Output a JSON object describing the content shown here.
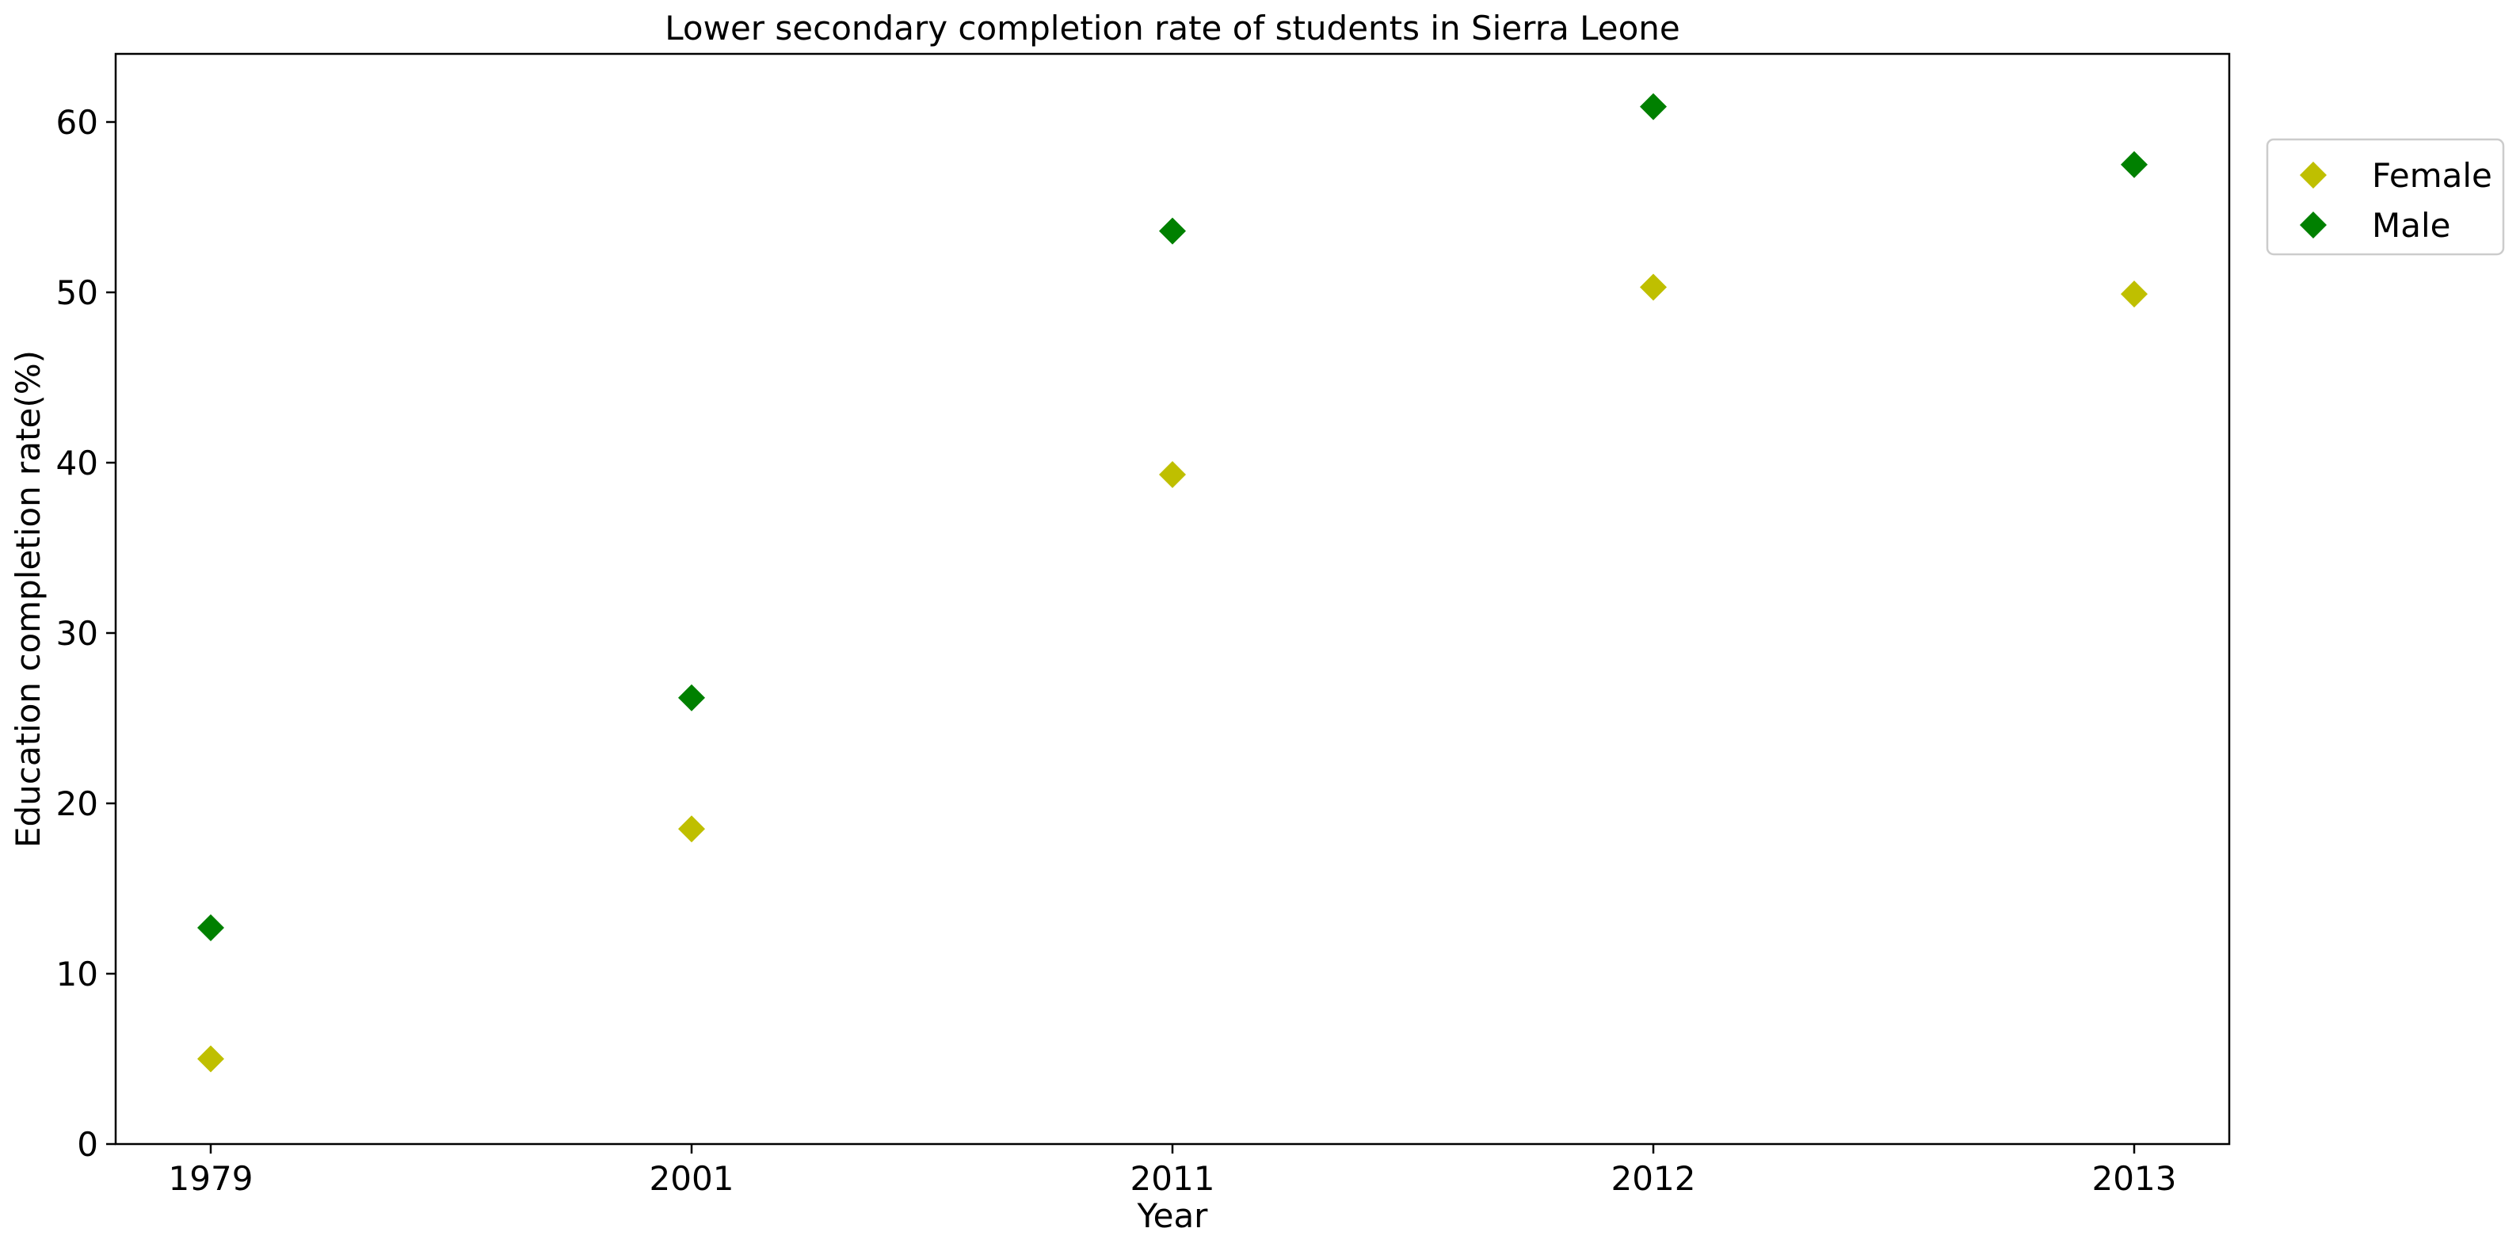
{
  "chart_data": {
    "type": "scatter",
    "title": "Lower secondary completion rate of students in Sierra Leone",
    "xlabel": "Year",
    "ylabel": "Education completion rate(%)",
    "categories": [
      "1979",
      "2001",
      "2011",
      "2012",
      "2013"
    ],
    "ylim": [
      0,
      64
    ],
    "yticks": [
      "0",
      "10",
      "20",
      "30",
      "40",
      "50",
      "60"
    ],
    "grid": false,
    "legend_position": "right, outside plot, top",
    "marker": "diamond",
    "series": [
      {
        "name": "Female",
        "color": "#bfbf00",
        "values": [
          5.0,
          18.5,
          39.3,
          50.3,
          49.9
        ]
      },
      {
        "name": "Male",
        "color": "#008000",
        "values": [
          12.7,
          26.2,
          53.6,
          60.9,
          57.5
        ]
      }
    ]
  }
}
